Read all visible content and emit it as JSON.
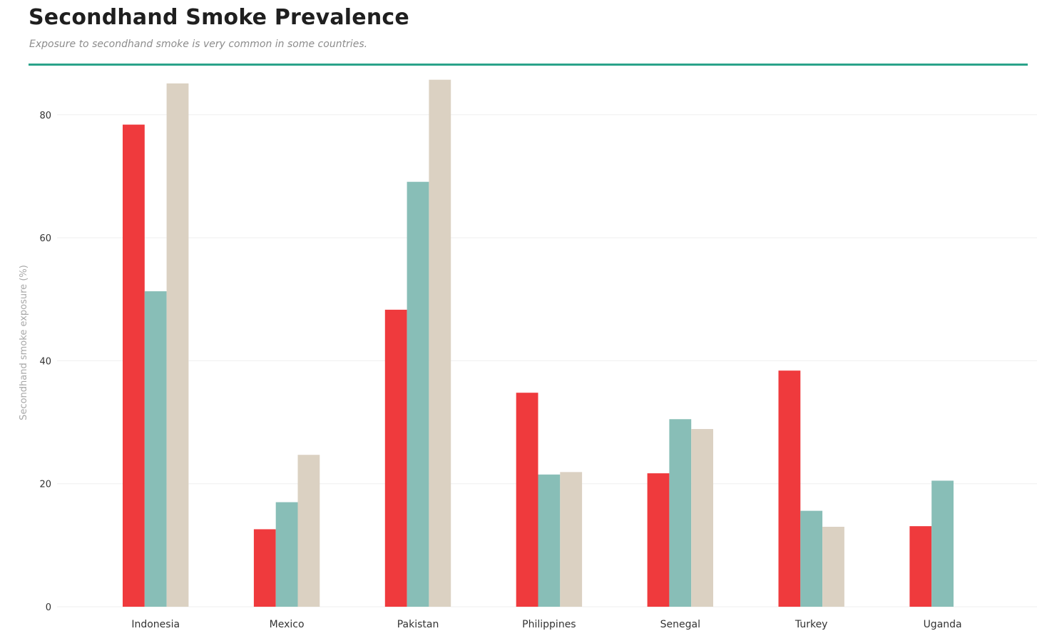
{
  "header": {
    "title": "Secondhand Smoke Prevalence",
    "subtitle": "Exposure to secondhand smoke is very common in some countries."
  },
  "colors": {
    "accent_rule": "#2aa38a",
    "series": [
      "#ef3a3d",
      "#88beb7",
      "#dbd1c2"
    ],
    "grid": "#efefef"
  },
  "chart_data": {
    "type": "bar",
    "title": "Secondhand Smoke Prevalence",
    "subtitle": "Exposure to secondhand smoke is very common in some countries.",
    "xlabel": "",
    "ylabel": "Secondhand smoke exposure (%)",
    "ylim": [
      0,
      85.7
    ],
    "yticks": [
      0,
      20,
      40,
      60,
      80
    ],
    "grid": true,
    "legend": "none",
    "categories": [
      "Indonesia",
      "Mexico",
      "Pakistan",
      "Philippines",
      "Senegal",
      "Turkey",
      "Uganda"
    ],
    "series": [
      {
        "values": [
          78.4,
          12.6,
          48.3,
          34.8,
          21.7,
          38.4,
          13.1
        ]
      },
      {
        "values": [
          51.3,
          17.0,
          69.1,
          21.5,
          30.5,
          15.6,
          20.5
        ]
      },
      {
        "values": [
          85.1,
          24.7,
          85.7,
          21.9,
          28.9,
          13.0,
          null
        ]
      }
    ]
  }
}
